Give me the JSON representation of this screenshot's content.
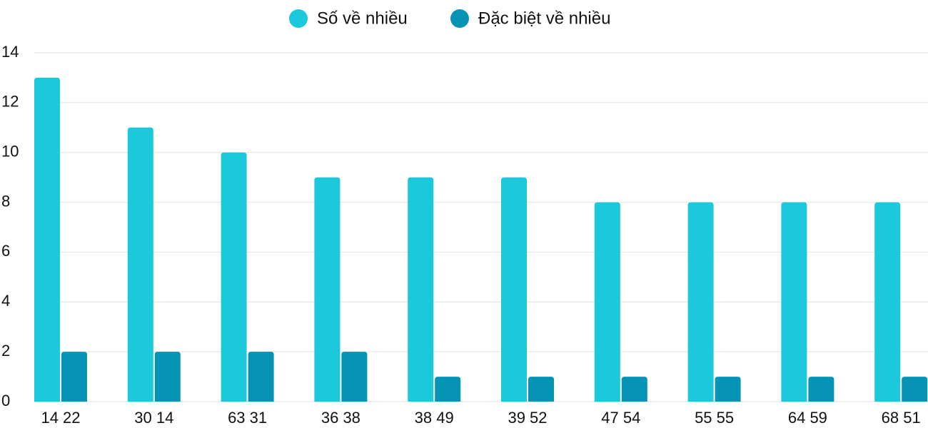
{
  "chart_data": {
    "type": "bar",
    "categories": [
      "14 22",
      "30 14",
      "63 31",
      "36 38",
      "38 49",
      "39 52",
      "47 54",
      "55 55",
      "64 59",
      "68 51"
    ],
    "series": [
      {
        "name": "Số về nhiều",
        "color": "#1cc8db",
        "values": [
          13,
          11,
          10,
          9,
          9,
          9,
          8,
          8,
          8,
          8
        ]
      },
      {
        "name": "Đặc biệt về nhiều",
        "color": "#0594b6",
        "values": [
          2,
          2,
          2,
          2,
          1,
          1,
          1,
          1,
          1,
          1
        ]
      }
    ],
    "ylim": [
      0,
      14
    ],
    "yticks": [
      0,
      2,
      4,
      6,
      8,
      10,
      12,
      14
    ],
    "grid": true
  }
}
